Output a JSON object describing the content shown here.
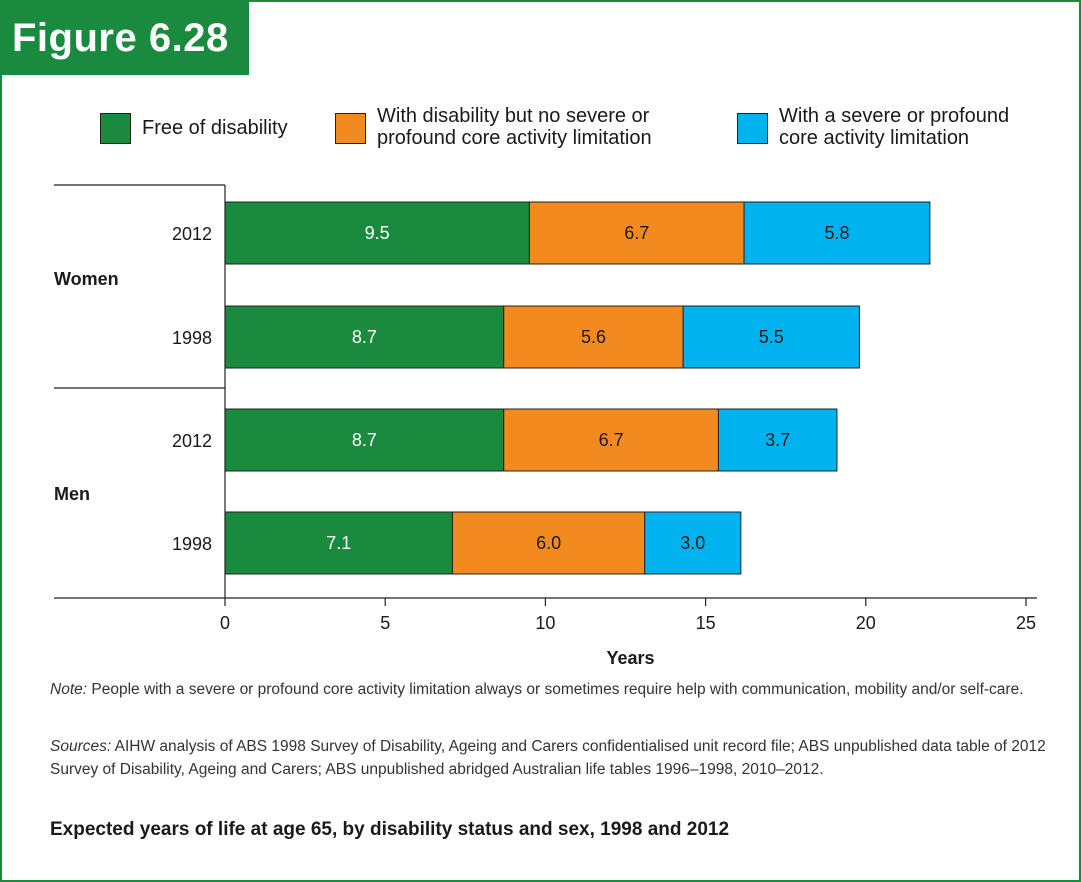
{
  "figure_label": "Figure 6.28",
  "caption": "Expected years of life at age 65, by disability status and sex, 1998 and 2012",
  "note": {
    "label": "Note:",
    "text": " People with a severe or profound core activity limitation always or sometimes require help with communication, mobility and/or self-care."
  },
  "sources": {
    "label": "Sources:",
    "text": " AIHW analysis of ABS 1998 Survey of Disability, Ageing and Carers confidentialised unit record file; ABS unpublished data table of 2012 Survey of Disability, Ageing and Carers; ABS unpublished abridged Australian life tables 1996–1998, 2010–2012."
  },
  "legend": [
    {
      "label_line1": "Free of disability",
      "label_line2": "",
      "color": "#1a8a3f"
    },
    {
      "label_line1": "With disability but no severe or",
      "label_line2": "profound core activity limitation",
      "color": "#f38a1f"
    },
    {
      "label_line1": "With a severe or profound",
      "label_line2": "core activity limitation",
      "color": "#00b2ee"
    }
  ],
  "chart_data": {
    "type": "bar",
    "orientation": "horizontal",
    "stacked": true,
    "xlabel": "Years",
    "xlim": [
      0,
      25
    ],
    "xticks": [
      0,
      5,
      10,
      15,
      20,
      25
    ],
    "groups": [
      {
        "name": "Women",
        "categories": [
          "2012",
          "1998"
        ]
      },
      {
        "name": "Men",
        "categories": [
          "2012",
          "1998"
        ]
      }
    ],
    "series": [
      {
        "name": "Free of disability",
        "color": "#1a8a3f",
        "label_color": "#ffffff",
        "values": [
          9.5,
          8.7,
          8.7,
          7.1
        ],
        "labels": [
          "9.5",
          "8.7",
          "8.7",
          "7.1"
        ]
      },
      {
        "name": "With disability but no severe or profound core activity limitation",
        "color": "#f38a1f",
        "label_color": "#1a1a1a",
        "values": [
          6.7,
          5.6,
          6.7,
          6.0
        ],
        "labels": [
          "6.7",
          "5.6",
          "6.7",
          "6.0"
        ]
      },
      {
        "name": "With a severe or profound core activity limitation",
        "color": "#00b2ee",
        "label_color": "#1a1a1a",
        "values": [
          5.8,
          5.5,
          3.7,
          3.0
        ],
        "labels": [
          "5.8",
          "5.5",
          "3.7",
          "3.0"
        ]
      }
    ]
  }
}
